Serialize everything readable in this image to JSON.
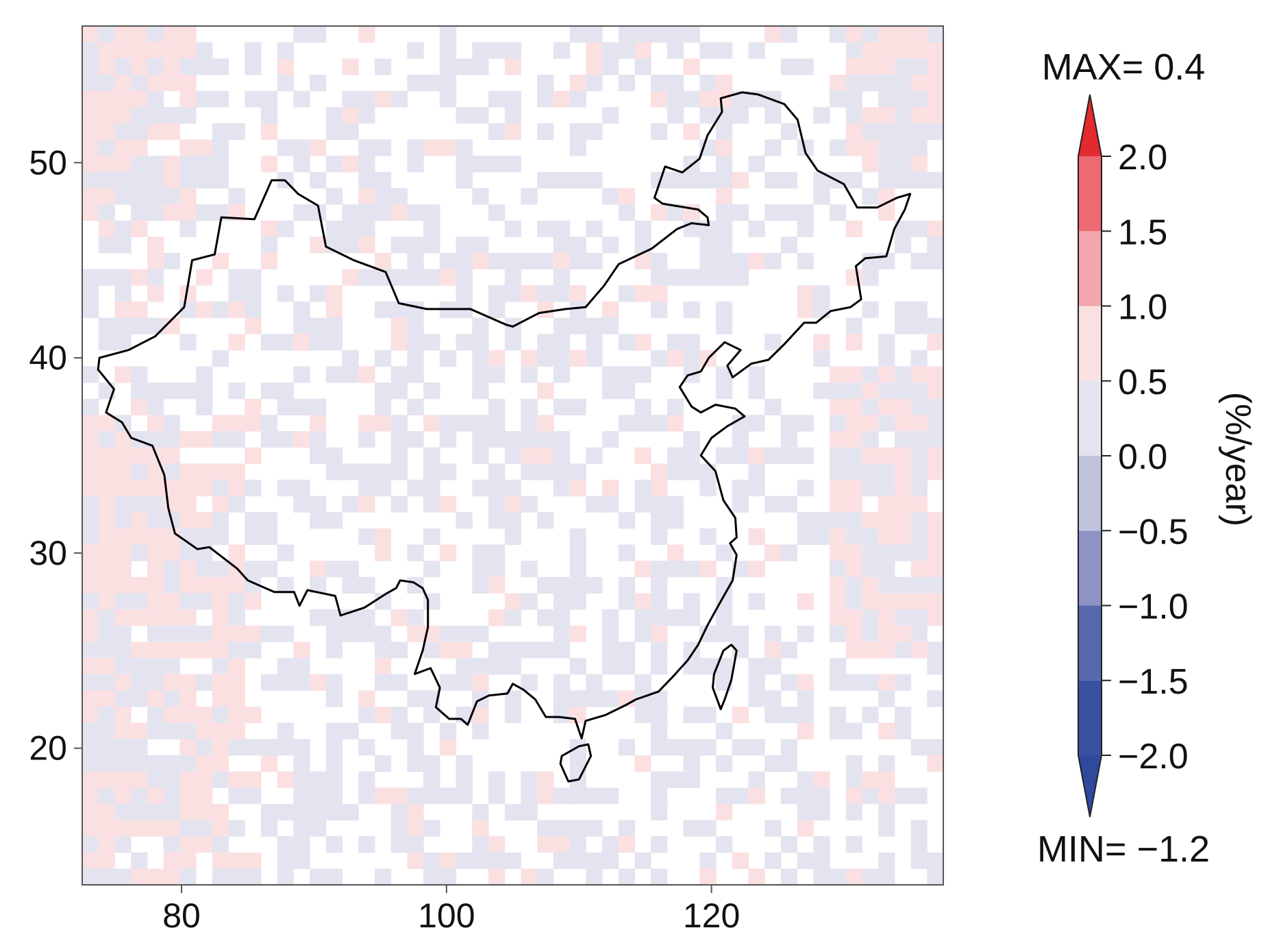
{
  "map": {
    "lon_range": [
      72.5,
      137.5
    ],
    "lat_range": [
      13.0,
      57.0
    ],
    "x_ticks": [
      80,
      100,
      120
    ],
    "x_tick_labels": [
      "80",
      "100",
      "120"
    ],
    "y_ticks": [
      20,
      30,
      40,
      50
    ],
    "y_tick_labels": [
      "20",
      "30",
      "40",
      "50"
    ],
    "grid": "off",
    "cell_colors": {
      "positive_0_0.5": "#fbe0e2",
      "negative_0_0.5": "#e4e4f1",
      "border": "#000000"
    }
  },
  "legend": {
    "max_label": "MAX= 0.4",
    "min_label": "MIN= −1.2",
    "unit_label": "(%/year)",
    "placement": "right",
    "bins": [
      {
        "from": -2.0,
        "to": -1.5,
        "color": "#3a52a3"
      },
      {
        "from": -1.5,
        "to": -1.0,
        "color": "#5669ad"
      },
      {
        "from": -1.0,
        "to": -0.5,
        "color": "#8e92c4"
      },
      {
        "from": -0.5,
        "to": 0.0,
        "color": "#c1c2de"
      },
      {
        "from": 0.0,
        "to": 0.5,
        "color": "#e4e4f1"
      },
      {
        "from": 0.5,
        "to": 1.0,
        "color": "#fbe0e2"
      },
      {
        "from": 1.0,
        "to": 1.5,
        "color": "#f3a6ad"
      },
      {
        "from": 1.5,
        "to": 2.0,
        "color": "#ec6a73"
      }
    ],
    "under_color": "#2f4a9c",
    "over_color": "#e32a2f",
    "ticks": [
      2.0,
      1.5,
      1.0,
      0.5,
      0.0,
      -0.5,
      -1.0,
      -1.5,
      -2.0
    ],
    "tick_labels": [
      "2.0",
      "1.5",
      "1.0",
      "0.5",
      "0.0",
      "−0.5",
      "−1.0",
      "−1.5",
      "−2.0"
    ]
  }
}
